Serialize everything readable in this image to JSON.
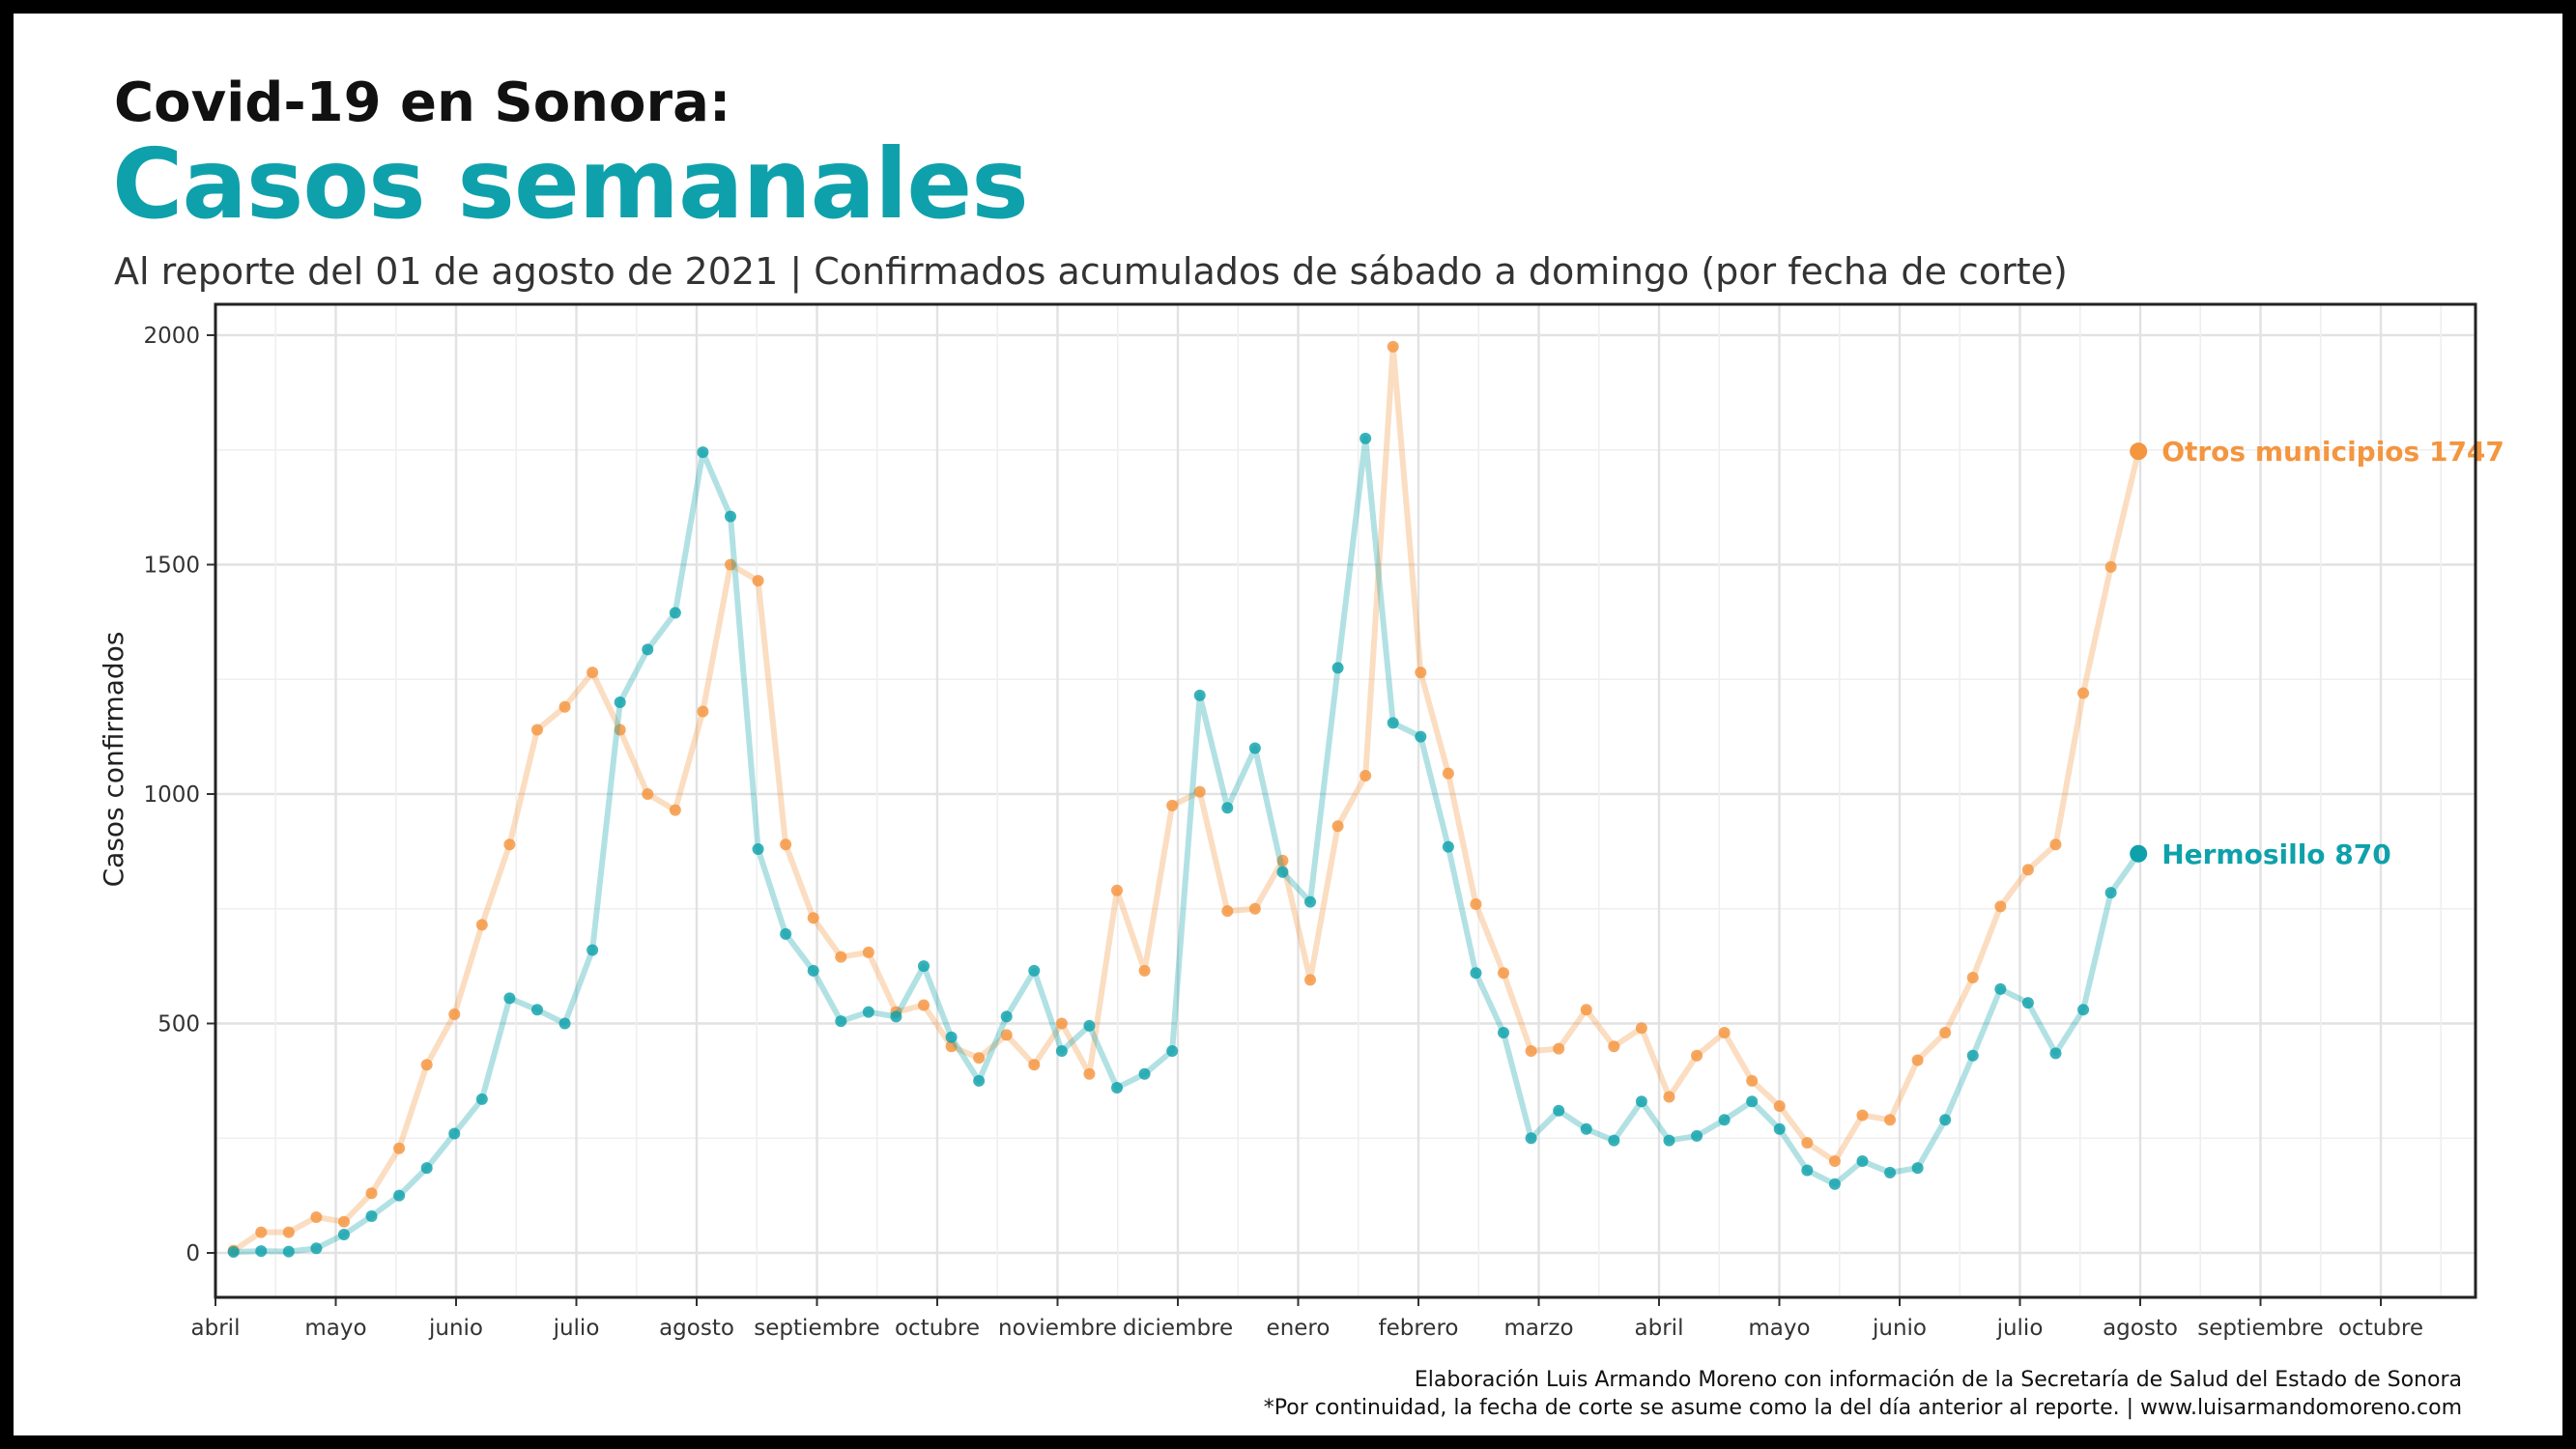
{
  "header": {
    "super_title": "Covid-19 en Sonora:",
    "title": "Casos semanales",
    "subtitle": "Al reporte del 01 de agosto de 2021 | Confirmados acumulados de sábado a domingo (por fecha de corte)"
  },
  "caption": {
    "line1": "Elaboración Luis Armando Moreno con información de la Secretaría de Salud del Estado de Sonora",
    "line2": "*Por continuidad, la fecha de corte se asume como la del día anterior al reporte. | www.luisarmandomoreno.com"
  },
  "colors": {
    "hermosillo": "#0fa1ab",
    "otros": "#f4953f"
  },
  "chart_data": {
    "type": "line",
    "ylabel": "Casos confirmados",
    "xlabel": "",
    "ylim": [
      -95,
      2090
    ],
    "yticks": [
      0,
      500,
      1000,
      1500,
      2000
    ],
    "grid": true,
    "legend": "end-of-line labels",
    "x_domain": [
      0,
      19.7
    ],
    "x_ticks": [
      {
        "pos": 0,
        "label": "abril"
      },
      {
        "pos": 1,
        "label": "mayo"
      },
      {
        "pos": 2,
        "label": "junio"
      },
      {
        "pos": 3,
        "label": "julio"
      },
      {
        "pos": 4,
        "label": "agosto"
      },
      {
        "pos": 5,
        "label": "septiembre"
      },
      {
        "pos": 6,
        "label": "octubre"
      },
      {
        "pos": 7,
        "label": "noviembre"
      },
      {
        "pos": 8,
        "label": "diciembre"
      },
      {
        "pos": 9,
        "label": "enero"
      },
      {
        "pos": 10,
        "label": "febrero"
      },
      {
        "pos": 11,
        "label": "marzo"
      },
      {
        "pos": 12,
        "label": "abril"
      },
      {
        "pos": 13,
        "label": "mayo"
      },
      {
        "pos": 14,
        "label": "junio"
      },
      {
        "pos": 15,
        "label": "julio"
      },
      {
        "pos": 16,
        "label": "agosto"
      },
      {
        "pos": 17,
        "label": "septiembre"
      },
      {
        "pos": 18,
        "label": "octubre"
      }
    ],
    "x_start_month": 0.15,
    "x_week_step": 0.2295,
    "series": [
      {
        "name": "Otros municipios",
        "end_value": 1747,
        "end_label": "Otros municipios 1747",
        "color": "#f4953f",
        "values": [
          5,
          45,
          45,
          78,
          68,
          130,
          228,
          410,
          520,
          715,
          890,
          1140,
          1190,
          1265,
          1140,
          1000,
          965,
          1180,
          1500,
          1465,
          890,
          730,
          645,
          655,
          525,
          540,
          450,
          425,
          475,
          410,
          500,
          390,
          790,
          615,
          975,
          1005,
          745,
          750,
          855,
          595,
          930,
          1040,
          1975,
          1265,
          1045,
          760,
          610,
          440,
          445,
          530,
          450,
          490,
          340,
          430,
          480,
          375,
          320,
          240,
          200,
          300,
          290,
          420,
          480,
          600,
          755,
          835,
          890,
          1220,
          1495,
          1747
        ]
      },
      {
        "name": "Hermosillo",
        "end_value": 870,
        "end_label": "Hermosillo 870",
        "color": "#0fa1ab",
        "values": [
          2,
          4,
          3,
          10,
          40,
          80,
          125,
          185,
          260,
          335,
          555,
          530,
          500,
          660,
          1200,
          1315,
          1395,
          1745,
          1605,
          880,
          695,
          615,
          505,
          525,
          515,
          625,
          470,
          375,
          515,
          615,
          440,
          495,
          360,
          390,
          440,
          1215,
          970,
          1100,
          830,
          765,
          1275,
          1775,
          1155,
          1125,
          885,
          610,
          480,
          250,
          310,
          270,
          245,
          330,
          245,
          255,
          290,
          330,
          270,
          180,
          150,
          200,
          175,
          185,
          290,
          430,
          575,
          545,
          435,
          530,
          785,
          870
        ]
      }
    ]
  }
}
